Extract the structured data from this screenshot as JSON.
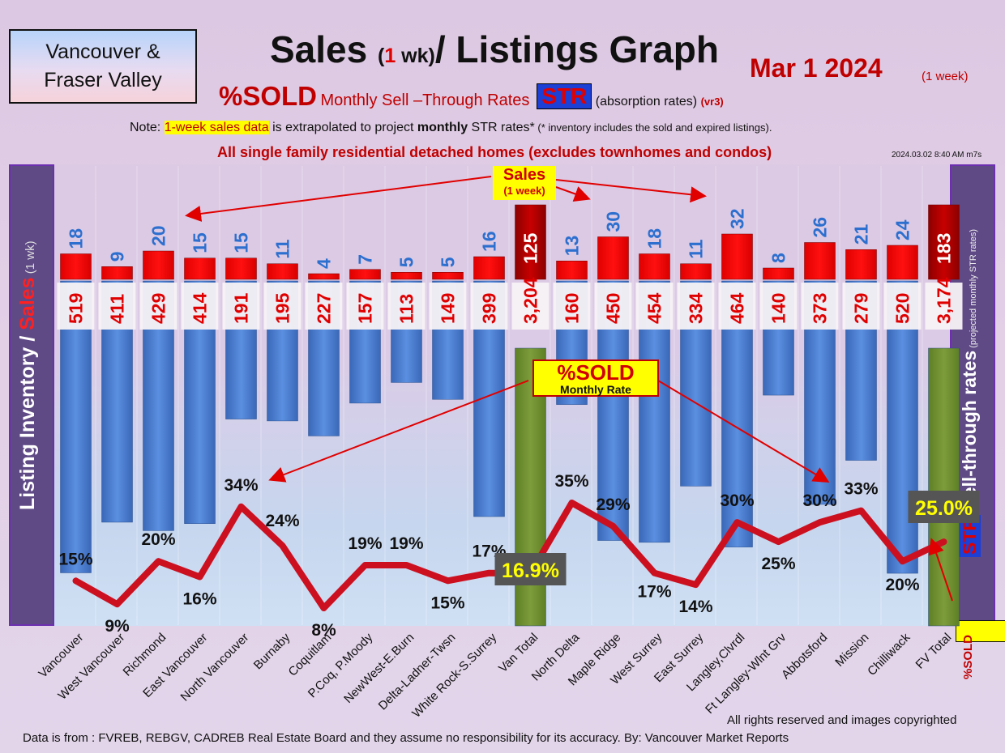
{
  "header": {
    "region_line1": "Vancouver &",
    "region_line2": "Fraser Valley",
    "title_part1": "Sales ",
    "title_open": "(",
    "title_one": "1",
    "title_wk": " wk)",
    "title_part2": "/ Listings Graph",
    "date": "Mar 1  2024",
    "date_note": "(1 week)",
    "subtitle_sold": "%SOLD",
    "subtitle_monthly": "Monthly ",
    "subtitle_rates_html": "Monthly Sell –Through Rates",
    "subtitle_str": "STR",
    "subtitle_absorption": "(absorption rates)",
    "subtitle_version": "(vr3)",
    "note_prefix": "Note: ",
    "note_highlight": "1-week sales data",
    "note_mid": " is extrapolated to project ",
    "note_bold": "monthly",
    "note_suffix": " STR rates*",
    "note_small": " (* inventory includes the sold and expired listings).",
    "exclusion": "All single family residential detached homes (excludes townhomes and condos)",
    "timestamp": "2024.03.02 8:40 AM m7s"
  },
  "side_labels": {
    "left_part1": "Listing Inventory / ",
    "left_sales": "Sales",
    "left_small": " (1 wk)",
    "right_main": "Sell-through rates",
    "right_small": " (projected monthly STR rates)",
    "right_str": "STR",
    "right_sold": "%SOLD"
  },
  "callouts": {
    "sales_line1": "Sales",
    "sales_line2": "(1 week)",
    "sold_line1": "%SOLD",
    "sold_line2": "Monthly Rate"
  },
  "footer": {
    "rights": "All rights reserved and  images copyrighted",
    "source": "Data is from : FVREB, REBGV, CADREB Real Estate Board and they assume no responsibility for its accuracy. By: Vancouver Market Reports"
  },
  "colors": {
    "sales_bar": "#ff0000",
    "inventory_bar": "#4a7fd0",
    "total_bar": "#6f8f2f",
    "total_sales_bar": "#b00000",
    "str_line": "#cc1020",
    "sales_label": "#2c6fcf",
    "inventory_label": "#e00000"
  },
  "chart_data": {
    "type": "bar",
    "categories": [
      "Vancouver",
      "West Vancouver",
      "Richmond",
      "East Vancouver",
      "North Vancouver",
      "Burnaby",
      "Coquitlam",
      "P.Coq, P.Moody",
      "NewWest-E.Burn",
      "Delta-Ladner-Twsn",
      "White Rock-S.Surrey",
      "Van Total",
      "North Delta",
      "Maple Ridge",
      "West Surrey",
      "East Surrey",
      "Langley,Clvrdl",
      "Ft Langley-Wlnt Grv",
      "Abbotsford",
      "Mission",
      "Chilliwack",
      "FV Total"
    ],
    "series": [
      {
        "name": "Sales",
        "values": [
          18,
          9,
          20,
          15,
          15,
          11,
          4,
          7,
          5,
          5,
          16,
          125,
          13,
          30,
          18,
          11,
          32,
          8,
          26,
          21,
          24,
          183
        ]
      },
      {
        "name": "Listing Inventory",
        "values": [
          519,
          411,
          429,
          414,
          191,
          195,
          227,
          157,
          113,
          149,
          399,
          3204,
          160,
          450,
          454,
          334,
          464,
          140,
          373,
          279,
          520,
          3174
        ]
      },
      {
        "name": "%SOLD",
        "values": [
          15,
          9,
          20,
          16,
          34,
          24,
          8,
          19,
          19,
          15,
          17,
          16.9,
          35,
          29,
          17,
          14,
          30,
          25,
          30,
          33,
          20,
          25.0
        ]
      }
    ],
    "inventory_labels": [
      "519",
      "411",
      "429",
      "414",
      "191",
      "195",
      "227",
      "157",
      "113",
      "149",
      "399",
      "3,204",
      "160",
      "450",
      "454",
      "334",
      "464",
      "140",
      "373",
      "279",
      "520",
      "3,174"
    ],
    "sold_labels": [
      "15%",
      "9%",
      "20%",
      "16%",
      "34%",
      "24%",
      "8%",
      "19%",
      "19%",
      "15%",
      "17%",
      "16.9%",
      "35%",
      "29%",
      "17%",
      "14%",
      "30%",
      "25%",
      "30%",
      "33%",
      "20%",
      "25.0%"
    ],
    "total_indices": [
      11,
      21
    ],
    "sales_axis_max": 40,
    "inventory_axis_max": 570,
    "sold_axis_range": [
      0,
      45
    ]
  }
}
